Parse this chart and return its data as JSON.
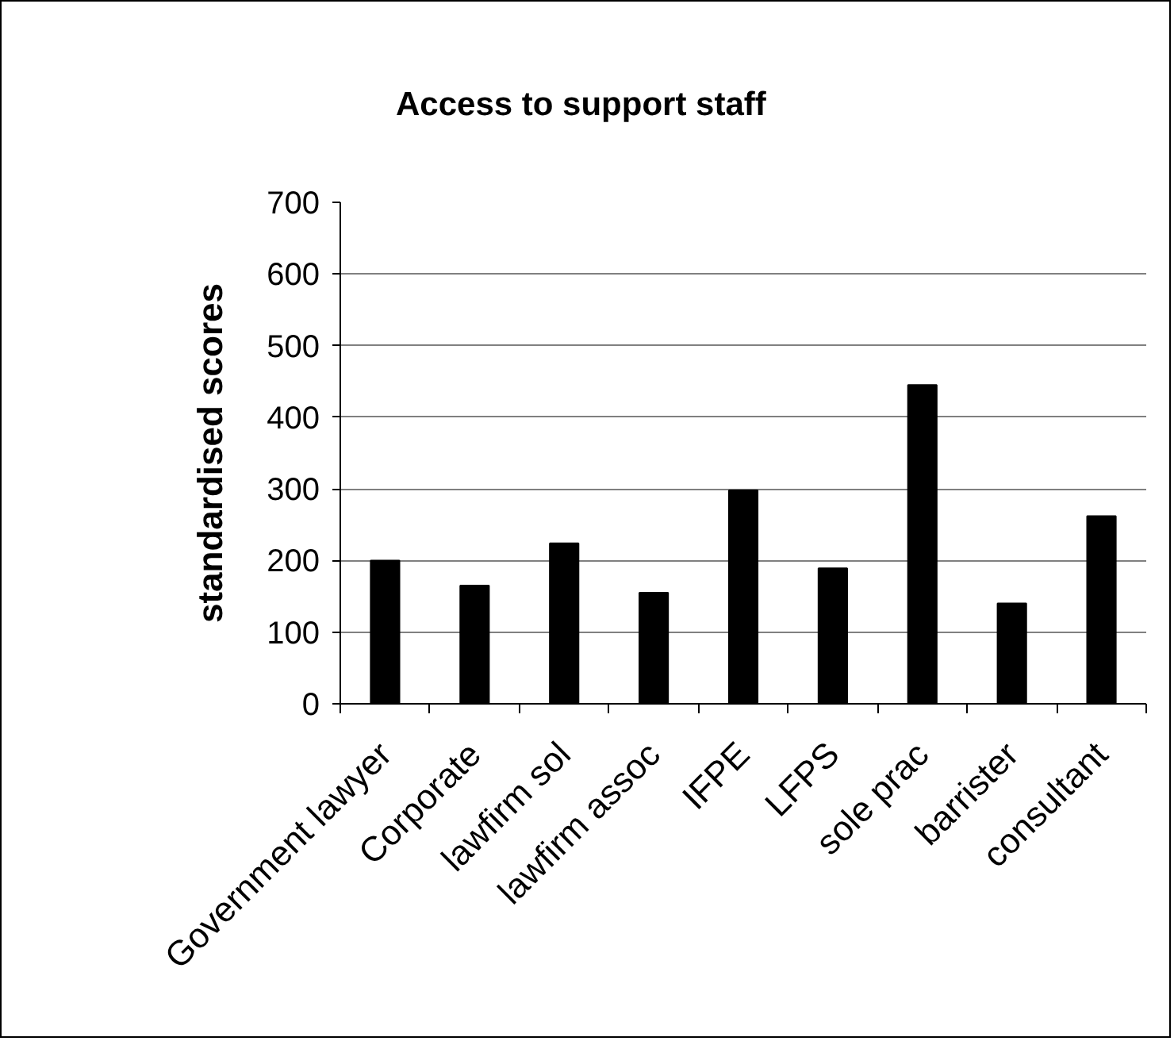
{
  "chart_data": {
    "type": "bar",
    "title": "Access to support staff",
    "ylabel": "standardised scores",
    "categories": [
      "Government lawyer",
      "Corporate",
      "lawfirm sol",
      "lawfirm assoc",
      "IFPE",
      "LFPS",
      "sole prac",
      "barrister",
      "consultant"
    ],
    "values": [
      200,
      165,
      224,
      155,
      298,
      189,
      445,
      140,
      262
    ],
    "color": "#000000",
    "ylim": [
      0,
      700
    ],
    "yticks": [
      0,
      100,
      200,
      300,
      400,
      500,
      600,
      700
    ],
    "grid": "y"
  }
}
